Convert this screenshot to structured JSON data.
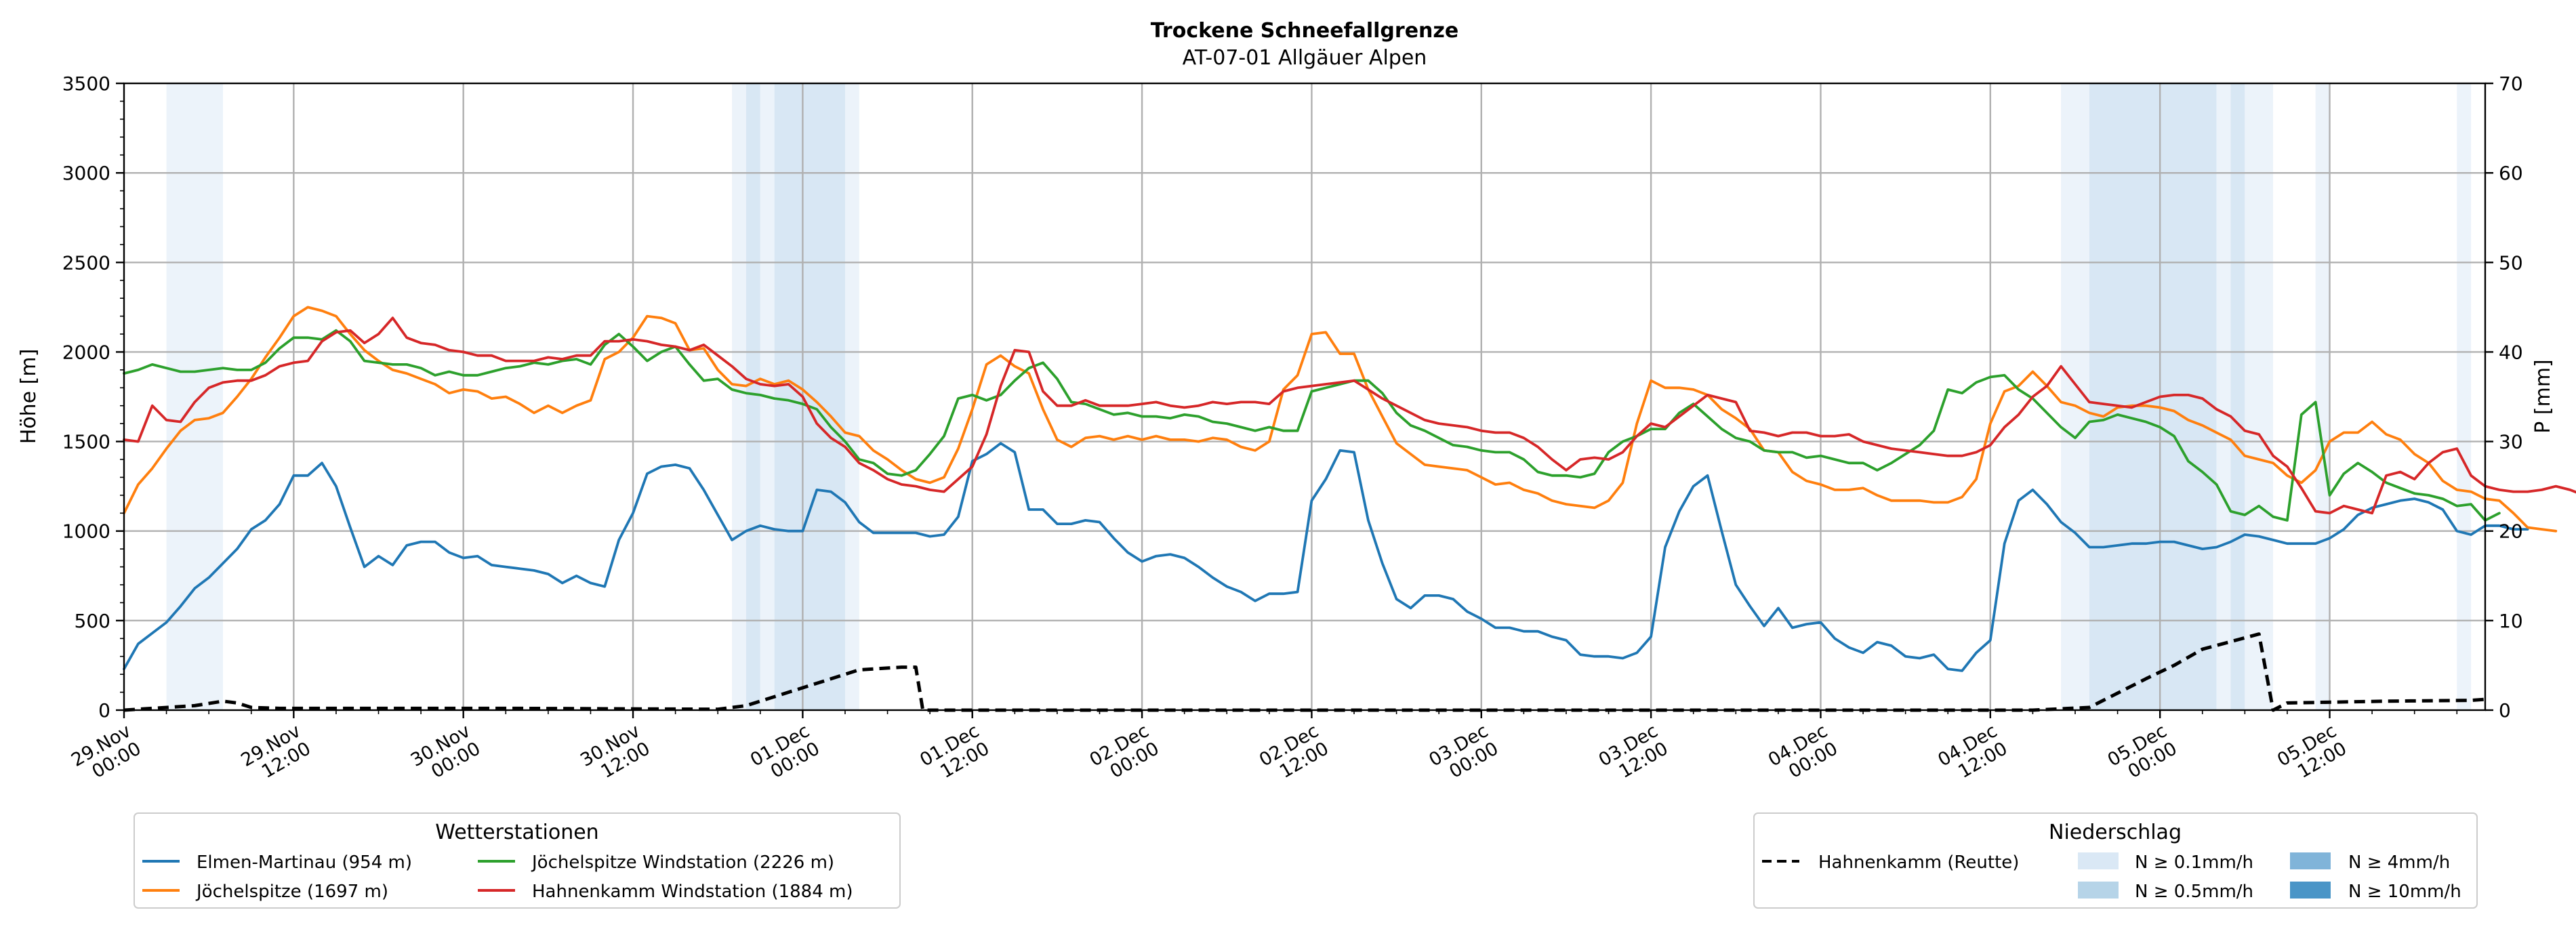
{
  "chart_data": {
    "type": "line",
    "title": "Trockene Schneefallgrenze",
    "subtitle": "AT-07-01 Allgäuer Alpen",
    "ylabel": "Höhe [m]",
    "y2label": "P [mm]",
    "ylim": [
      0,
      3500
    ],
    "y2lim": [
      0,
      70
    ],
    "yticks": [
      "0",
      "500",
      "1000",
      "1500",
      "2000",
      "2500",
      "3000",
      "3500"
    ],
    "y2ticks": [
      "0",
      "10",
      "20",
      "30",
      "40",
      "50",
      "60",
      "70"
    ],
    "xlim_hours": [
      0,
      167
    ],
    "xticks": [
      {
        "h": 0,
        "l1": "29.Nov",
        "l2": "00:00"
      },
      {
        "h": 12,
        "l1": "29.Nov",
        "l2": "12:00"
      },
      {
        "h": 24,
        "l1": "30.Nov",
        "l2": "00:00"
      },
      {
        "h": 36,
        "l1": "30.Nov",
        "l2": "12:00"
      },
      {
        "h": 48,
        "l1": "01.Dec",
        "l2": "00:00"
      },
      {
        "h": 60,
        "l1": "01.Dec",
        "l2": "12:00"
      },
      {
        "h": 72,
        "l1": "02.Dec",
        "l2": "00:00"
      },
      {
        "h": 84,
        "l1": "02.Dec",
        "l2": "12:00"
      },
      {
        "h": 96,
        "l1": "03.Dec",
        "l2": "00:00"
      },
      {
        "h": 108,
        "l1": "03.Dec",
        "l2": "12:00"
      },
      {
        "h": 120,
        "l1": "04.Dec",
        "l2": "00:00"
      },
      {
        "h": 132,
        "l1": "04.Dec",
        "l2": "12:00"
      },
      {
        "h": 144,
        "l1": "05.Dec",
        "l2": "00:00"
      },
      {
        "h": 156,
        "l1": "05.Dec",
        "l2": "12:00"
      }
    ],
    "precip_bands": [
      {
        "start": 3,
        "end": 7,
        "level": 1
      },
      {
        "start": 43,
        "end": 44,
        "level": 1
      },
      {
        "start": 44,
        "end": 45,
        "level": 2
      },
      {
        "start": 45,
        "end": 46,
        "level": 1
      },
      {
        "start": 46,
        "end": 51,
        "level": 2
      },
      {
        "start": 51,
        "end": 52,
        "level": 1
      },
      {
        "start": 137,
        "end": 139,
        "level": 1
      },
      {
        "start": 139,
        "end": 148,
        "level": 2
      },
      {
        "start": 148,
        "end": 149,
        "level": 1
      },
      {
        "start": 149,
        "end": 150,
        "level": 2
      },
      {
        "start": 150,
        "end": 152,
        "level": 1
      },
      {
        "start": 155,
        "end": 156,
        "level": 1
      },
      {
        "start": 165,
        "end": 166,
        "level": 1
      }
    ],
    "series": [
      {
        "name": "Elmen-Martinau (954 m)",
        "color": "#1f77b4",
        "axis": "left",
        "step": 1,
        "values": [
          230,
          370,
          430,
          490,
          580,
          680,
          740,
          820,
          900,
          1010,
          1060,
          1150,
          1310,
          1310,
          1380,
          1250,
          1020,
          800,
          860,
          810,
          920,
          940,
          940,
          880,
          850,
          860,
          810,
          800,
          790,
          780,
          760,
          710,
          750,
          710,
          690,
          950,
          1100,
          1320,
          1360,
          1370,
          1350,
          1230,
          1090,
          950,
          1000,
          1030,
          1010,
          1000,
          1000,
          1230,
          1220,
          1160,
          1050,
          990,
          990,
          990,
          990,
          970,
          980,
          1080,
          1390,
          1430,
          1490,
          1440,
          1120,
          1120,
          1040,
          1040,
          1060,
          1050,
          960,
          880,
          830,
          860,
          870,
          850,
          800,
          740,
          690,
          660,
          610,
          650,
          650,
          660,
          1170,
          1290,
          1450,
          1440,
          1060,
          820,
          620,
          570,
          640,
          640,
          620,
          550,
          510,
          460,
          460,
          440,
          440,
          410,
          390,
          310,
          300,
          300,
          290,
          320,
          410,
          910,
          1110,
          1250,
          1310,
          1000,
          700,
          580,
          470,
          570,
          460,
          480,
          490,
          400,
          350,
          320,
          380,
          360,
          300,
          290,
          310,
          230,
          220,
          320,
          390,
          930,
          1170,
          1230,
          1150,
          1050,
          990,
          910,
          910,
          920,
          930,
          930,
          940,
          940,
          920,
          900,
          910,
          940,
          980,
          970,
          950,
          930,
          930,
          930,
          960,
          1010,
          1090,
          1130,
          1150,
          1170,
          1180,
          1160,
          1120,
          1000,
          980,
          1030,
          1030,
          1010,
          1010
        ]
      },
      {
        "name": "Jöchelspitze (1697 m)",
        "color": "#ff7f0e",
        "axis": "left",
        "step": 1,
        "values": [
          1100,
          1260,
          1350,
          1460,
          1560,
          1620,
          1630,
          1660,
          1750,
          1850,
          1970,
          2080,
          2200,
          2250,
          2230,
          2200,
          2100,
          2010,
          1950,
          1900,
          1880,
          1850,
          1820,
          1770,
          1790,
          1780,
          1740,
          1750,
          1710,
          1660,
          1700,
          1660,
          1700,
          1730,
          1960,
          2000,
          2080,
          2200,
          2190,
          2160,
          2010,
          2020,
          1900,
          1820,
          1810,
          1850,
          1820,
          1840,
          1790,
          1720,
          1640,
          1550,
          1530,
          1450,
          1400,
          1340,
          1290,
          1270,
          1300,
          1460,
          1680,
          1930,
          1980,
          1920,
          1880,
          1680,
          1510,
          1470,
          1520,
          1530,
          1510,
          1530,
          1510,
          1530,
          1510,
          1510,
          1500,
          1520,
          1510,
          1470,
          1450,
          1500,
          1790,
          1870,
          2100,
          2110,
          1990,
          1990,
          1790,
          1640,
          1490,
          1430,
          1370,
          1360,
          1350,
          1340,
          1300,
          1260,
          1270,
          1230,
          1210,
          1170,
          1150,
          1140,
          1130,
          1170,
          1270,
          1600,
          1840,
          1800,
          1800,
          1790,
          1760,
          1680,
          1630,
          1570,
          1450,
          1440,
          1330,
          1280,
          1260,
          1230,
          1230,
          1240,
          1200,
          1170,
          1170,
          1170,
          1160,
          1160,
          1190,
          1290,
          1600,
          1780,
          1810,
          1890,
          1810,
          1720,
          1700,
          1660,
          1640,
          1690,
          1700,
          1700,
          1690,
          1670,
          1620,
          1590,
          1550,
          1510,
          1420,
          1400,
          1380,
          1310,
          1270,
          1340,
          1500,
          1550,
          1550,
          1610,
          1540,
          1510,
          1430,
          1380,
          1280,
          1230,
          1220,
          1180,
          1170,
          1100,
          1020,
          1010,
          1000
        ]
      },
      {
        "name": "Jöchelspitze Windstation (2226 m)",
        "color": "#2ca02c",
        "axis": "left",
        "step": 1,
        "values": [
          1880,
          1900,
          1930,
          1910,
          1890,
          1890,
          1900,
          1910,
          1900,
          1900,
          1940,
          2020,
          2080,
          2080,
          2070,
          2120,
          2060,
          1950,
          1940,
          1930,
          1930,
          1910,
          1870,
          1890,
          1870,
          1870,
          1890,
          1910,
          1920,
          1940,
          1930,
          1950,
          1960,
          1930,
          2040,
          2100,
          2030,
          1950,
          2000,
          2030,
          1930,
          1840,
          1850,
          1790,
          1770,
          1760,
          1740,
          1730,
          1710,
          1680,
          1580,
          1500,
          1400,
          1380,
          1320,
          1310,
          1340,
          1430,
          1530,
          1740,
          1760,
          1730,
          1760,
          1840,
          1910,
          1940,
          1850,
          1720,
          1710,
          1680,
          1650,
          1660,
          1640,
          1640,
          1630,
          1650,
          1640,
          1610,
          1600,
          1580,
          1560,
          1580,
          1560,
          1560,
          1780,
          1800,
          1820,
          1840,
          1840,
          1770,
          1660,
          1590,
          1560,
          1520,
          1480,
          1470,
          1450,
          1440,
          1440,
          1400,
          1330,
          1310,
          1310,
          1300,
          1320,
          1440,
          1500,
          1530,
          1570,
          1570,
          1660,
          1710,
          1640,
          1570,
          1520,
          1500,
          1450,
          1440,
          1440,
          1410,
          1420,
          1400,
          1380,
          1380,
          1340,
          1380,
          1430,
          1480,
          1560,
          1790,
          1770,
          1830,
          1860,
          1870,
          1790,
          1740,
          1660,
          1580,
          1520,
          1610,
          1620,
          1650,
          1630,
          1610,
          1580,
          1530,
          1390,
          1330,
          1260,
          1110,
          1090,
          1140,
          1080,
          1060,
          1650,
          1720,
          1200,
          1320,
          1380,
          1330,
          1270,
          1240,
          1210,
          1200,
          1180,
          1140,
          1150,
          1060,
          1100
        ]
      },
      {
        "name": "Hahnenkamm Windstation (1884 m)",
        "color": "#d62728",
        "axis": "left",
        "step": 1,
        "values": [
          1510,
          1500,
          1700,
          1620,
          1610,
          1720,
          1800,
          1830,
          1840,
          1840,
          1870,
          1920,
          1940,
          1950,
          2060,
          2110,
          2120,
          2050,
          2100,
          2190,
          2080,
          2050,
          2040,
          2010,
          2000,
          1980,
          1980,
          1950,
          1950,
          1950,
          1970,
          1960,
          1980,
          1980,
          2060,
          2060,
          2070,
          2060,
          2040,
          2030,
          2010,
          2040,
          1980,
          1920,
          1850,
          1820,
          1810,
          1820,
          1750,
          1600,
          1520,
          1470,
          1380,
          1340,
          1290,
          1260,
          1250,
          1230,
          1220,
          1290,
          1360,
          1540,
          1810,
          2010,
          2000,
          1780,
          1700,
          1700,
          1730,
          1700,
          1700,
          1700,
          1710,
          1720,
          1700,
          1690,
          1700,
          1720,
          1710,
          1720,
          1720,
          1710,
          1780,
          1800,
          1810,
          1820,
          1830,
          1840,
          1790,
          1740,
          1700,
          1660,
          1620,
          1600,
          1590,
          1580,
          1560,
          1550,
          1550,
          1520,
          1470,
          1400,
          1340,
          1400,
          1410,
          1400,
          1440,
          1530,
          1600,
          1580,
          1640,
          1700,
          1760,
          1740,
          1720,
          1560,
          1550,
          1530,
          1550,
          1550,
          1530,
          1530,
          1540,
          1500,
          1480,
          1460,
          1450,
          1440,
          1430,
          1420,
          1420,
          1440,
          1480,
          1580,
          1650,
          1750,
          1810,
          1920,
          1820,
          1720,
          1710,
          1700,
          1690,
          1720,
          1750,
          1760,
          1760,
          1740,
          1680,
          1640,
          1560,
          1540,
          1420,
          1360,
          1240,
          1110,
          1100,
          1140,
          1120,
          1100,
          1310,
          1330,
          1290,
          1380,
          1440,
          1460,
          1310,
          1250,
          1230,
          1220,
          1220,
          1230,
          1250,
          1230,
          1200,
          1170
        ]
      },
      {
        "name": "Hahnenkamm (Reutte)",
        "color": "#000000",
        "axis": "right",
        "dashed": true,
        "points": [
          [
            0,
            0
          ],
          [
            5,
            0.5
          ],
          [
            7,
            1
          ],
          [
            8,
            0.8
          ],
          [
            9,
            0.3
          ],
          [
            11,
            0.2
          ],
          [
            28,
            0.2
          ],
          [
            42,
            0.1
          ],
          [
            44,
            0.5
          ],
          [
            50,
            3.5
          ],
          [
            52,
            4.5
          ],
          [
            55,
            4.8
          ],
          [
            56,
            4.8
          ],
          [
            56.5,
            0
          ],
          [
            135,
            0
          ],
          [
            139,
            0.3
          ],
          [
            143,
            3.5
          ],
          [
            145,
            5
          ],
          [
            147,
            6.8
          ],
          [
            151,
            8.5
          ],
          [
            152,
            0
          ],
          [
            153,
            0.8
          ],
          [
            160,
            1
          ],
          [
            166,
            1.1
          ],
          [
            167,
            1.2
          ]
        ]
      }
    ],
    "legend_left": {
      "title": "Wetterstationen",
      "entries": [
        "Elmen-Martinau (954 m)",
        "Jöchelspitze (1697 m)",
        "Jöchelspitze Windstation (2226 m)",
        "Hahnenkamm Windstation (1884 m)"
      ]
    },
    "legend_right": {
      "title": "Niederschlag",
      "line_entry": "Hahnenkamm (Reutte)",
      "entries": [
        {
          "label": "N ≥ 0.1mm/h",
          "color": "#dae8f5"
        },
        {
          "label": "N ≥ 0.5mm/h",
          "color": "#b6d4e8"
        },
        {
          "label": "N ≥ 4mm/h",
          "color": "#80b4d9"
        },
        {
          "label": "N ≥ 10mm/h",
          "color": "#4a95c7"
        }
      ]
    },
    "band_colors": [
      "#ffffff",
      "#ecf3fa",
      "#d8e7f4"
    ]
  }
}
